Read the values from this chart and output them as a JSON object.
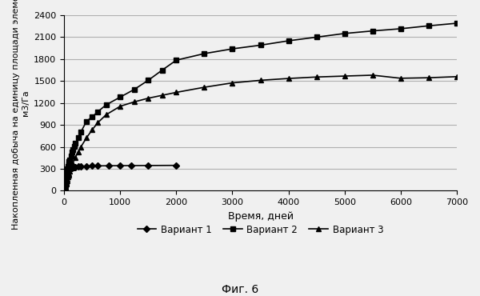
{
  "title": "",
  "xlabel": "Время, дней",
  "ylabel_line1": "Накопленная добыча на единицу площади элемента,",
  "ylabel_line2": "м3/Га",
  "caption": "Фиг. 6",
  "xlim": [
    0,
    7000
  ],
  "ylim": [
    0,
    2400
  ],
  "xticks": [
    0,
    1000,
    2000,
    3000,
    4000,
    5000,
    6000,
    7000
  ],
  "yticks": [
    0,
    300,
    600,
    900,
    1200,
    1500,
    1800,
    2100,
    2400
  ],
  "legend_labels": [
    "Вариант 1",
    "Вариант 2",
    "Вариант 3"
  ],
  "variant1_x": [
    0,
    5,
    10,
    15,
    20,
    25,
    30,
    35,
    40,
    45,
    50,
    55,
    60,
    65,
    70,
    75,
    80,
    90,
    100,
    110,
    120,
    140,
    160,
    180,
    200,
    250,
    300,
    400,
    500,
    600,
    800,
    1000,
    1200,
    1500,
    2000
  ],
  "variant1_y": [
    0,
    25,
    55,
    85,
    115,
    145,
    170,
    192,
    210,
    225,
    238,
    249,
    258,
    265,
    272,
    278,
    283,
    291,
    298,
    304,
    308,
    315,
    320,
    323,
    326,
    330,
    333,
    337,
    339,
    340,
    342,
    343,
    344,
    345,
    347
  ],
  "variant2_x": [
    0,
    5,
    10,
    15,
    20,
    25,
    30,
    35,
    40,
    45,
    50,
    60,
    70,
    80,
    90,
    100,
    120,
    140,
    160,
    180,
    200,
    250,
    300,
    400,
    500,
    600,
    750,
    1000,
    1250,
    1500,
    1750,
    2000,
    2500,
    3000,
    3500,
    4000,
    4500,
    5000,
    5500,
    6000,
    6500,
    7000
  ],
  "variant2_y": [
    0,
    30,
    60,
    90,
    118,
    145,
    170,
    195,
    218,
    240,
    260,
    298,
    333,
    366,
    396,
    425,
    477,
    525,
    568,
    608,
    645,
    730,
    805,
    950,
    1010,
    1080,
    1175,
    1280,
    1385,
    1510,
    1650,
    1785,
    1875,
    1940,
    1990,
    2050,
    2100,
    2150,
    2185,
    2215,
    2255,
    2290
  ],
  "variant3_x": [
    0,
    5,
    10,
    15,
    20,
    25,
    30,
    35,
    40,
    45,
    50,
    60,
    70,
    80,
    90,
    100,
    120,
    150,
    200,
    250,
    300,
    400,
    500,
    600,
    750,
    1000,
    1250,
    1500,
    1750,
    2000,
    2500,
    3000,
    3500,
    4000,
    4500,
    5000,
    5500,
    6000,
    6500,
    7000
  ],
  "variant3_y": [
    0,
    10,
    22,
    35,
    48,
    62,
    76,
    90,
    105,
    119,
    133,
    161,
    188,
    214,
    239,
    263,
    308,
    369,
    453,
    530,
    600,
    725,
    833,
    930,
    1040,
    1155,
    1215,
    1265,
    1305,
    1345,
    1415,
    1475,
    1510,
    1535,
    1555,
    1568,
    1580,
    1538,
    1545,
    1560
  ],
  "line_color": "#000000",
  "marker1": "D",
  "marker2": "s",
  "marker3": "^",
  "markersize": 4,
  "linewidth": 1.2,
  "bg_color": "#f0f0f0",
  "grid_color": "#b0b0b0"
}
